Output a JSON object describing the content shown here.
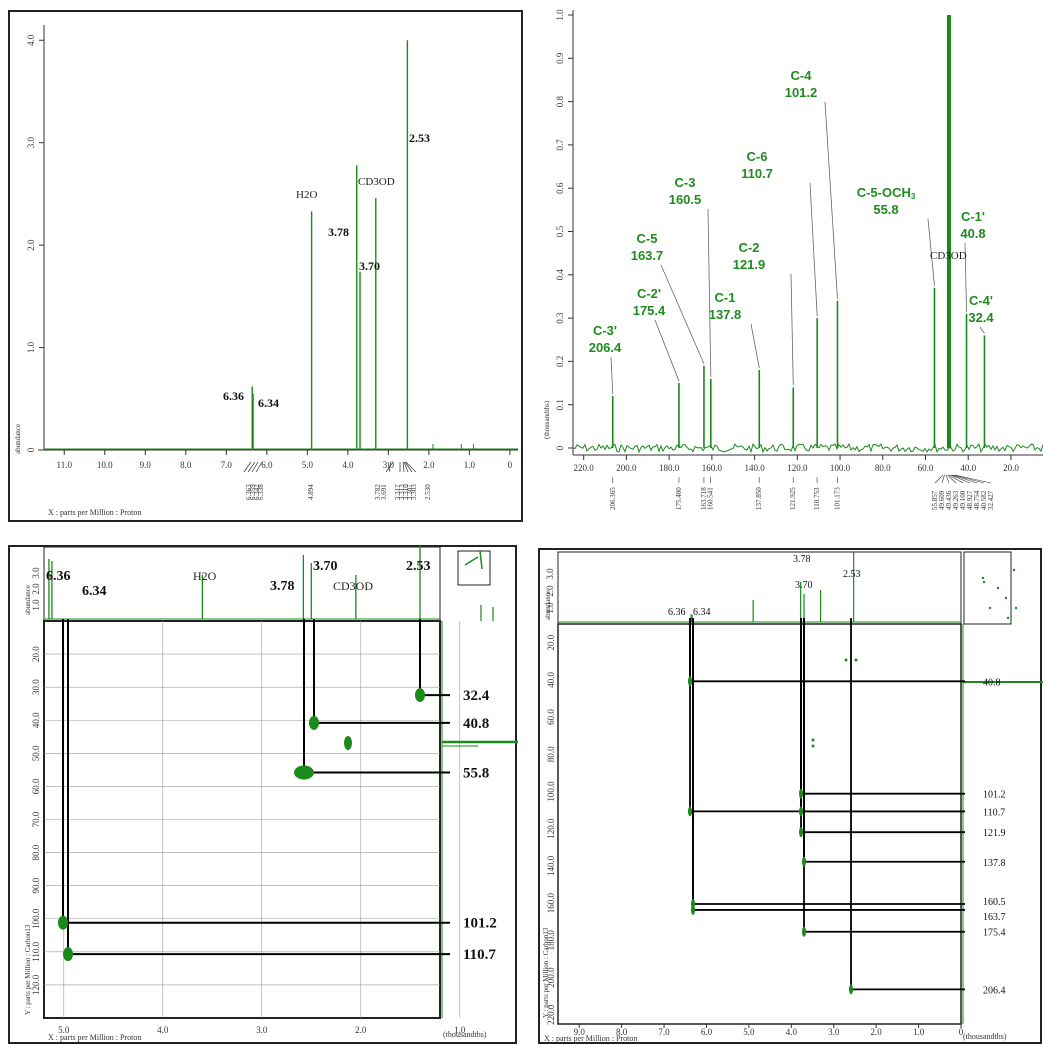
{
  "colors": {
    "spectrum": "#1a8a1a",
    "frame": "#222222",
    "grid": "#999999",
    "crossline": "#000000",
    "label_green": "#1e8c1e"
  },
  "proton_1d": {
    "x_axis_label": "X : parts per Million : Proton",
    "y_axis_label": "abundance",
    "x_ticks": [
      "11.0",
      "10.0",
      "9.0",
      "8.0",
      "7.0",
      "6.0",
      "5.0",
      "4.0",
      "3.0",
      "2.0",
      "1.0",
      "0"
    ],
    "y_ticks": [
      "0",
      "1.0",
      "2.0",
      "3.0",
      "4.0"
    ],
    "peak_readout": [
      "6.363",
      "6.359",
      "6.342",
      "6.338",
      "4.894",
      "3.782",
      "3.691",
      "3.317",
      "3.313",
      "3.310",
      "3.307",
      "3.303",
      "2.530"
    ],
    "labels": {
      "h2o": "H2O",
      "cd3od": "CD3OD",
      "p378": "3.78",
      "p370": "3.70",
      "p253": "2.53",
      "p636": "6.36",
      "p634": "6.34"
    }
  },
  "chart_data": [
    {
      "type": "line",
      "title": "",
      "xlabel": "X : parts per Million : Proton",
      "ylabel": "abundance",
      "xlim": [
        11.5,
        -0.2
      ],
      "ylim": [
        0,
        4.1
      ],
      "peaks": [
        {
          "x": 6.36,
          "y": 0.62
        },
        {
          "x": 6.34,
          "y": 0.55
        },
        {
          "x": 4.894,
          "y": 2.33
        },
        {
          "x": 3.78,
          "y": 2.78
        },
        {
          "x": 3.7,
          "y": 1.74
        },
        {
          "x": 3.31,
          "y": 2.46
        },
        {
          "x": 2.53,
          "y": 4.0
        }
      ]
    },
    {
      "type": "line",
      "title": "",
      "ylabel": "(thousandths)",
      "xlim": [
        225,
        5
      ],
      "ylim": [
        0,
        1.0
      ],
      "peaks": [
        {
          "x": 206.4,
          "y": 0.12
        },
        {
          "x": 175.4,
          "y": 0.15
        },
        {
          "x": 163.7,
          "y": 0.19
        },
        {
          "x": 160.5,
          "y": 0.16
        },
        {
          "x": 137.8,
          "y": 0.18
        },
        {
          "x": 121.9,
          "y": 0.14
        },
        {
          "x": 110.7,
          "y": 0.3
        },
        {
          "x": 101.2,
          "y": 0.34
        },
        {
          "x": 55.8,
          "y": 0.37
        },
        {
          "x": 49.0,
          "y": 1.0
        },
        {
          "x": 40.8,
          "y": 0.31
        },
        {
          "x": 32.4,
          "y": 0.26
        }
      ]
    },
    {
      "type": "scatter",
      "title": "",
      "xlabel": "X : parts per Million : Proton",
      "ylabel": "Y : parts per Million : Carbon13",
      "xlim": [
        5.2,
        1.2
      ],
      "ylim": [
        130,
        10
      ],
      "correlations": [
        {
          "x": 6.36,
          "y": 101.2
        },
        {
          "x": 6.34,
          "y": 110.7
        },
        {
          "x": 3.78,
          "y": 55.8
        },
        {
          "x": 3.7,
          "y": 40.8
        },
        {
          "x": 2.53,
          "y": 32.4
        }
      ]
    },
    {
      "type": "scatter",
      "title": "",
      "xlabel": "X : parts per Million : Proton",
      "ylabel": "Y : parts per Million : Carbon13",
      "xlim": [
        9.5,
        0
      ],
      "ylim": [
        225,
        10
      ],
      "correlations": [
        {
          "x": 6.36,
          "y": 40.8
        },
        {
          "x": 6.36,
          "y": 110.7
        },
        {
          "x": 6.34,
          "y": 160.5
        },
        {
          "x": 6.34,
          "y": 163.7
        },
        {
          "x": 3.78,
          "y": 101.2
        },
        {
          "x": 3.78,
          "y": 110.7
        },
        {
          "x": 3.78,
          "y": 121.9
        },
        {
          "x": 3.7,
          "y": 137.8
        },
        {
          "x": 3.7,
          "y": 175.4
        },
        {
          "x": 2.53,
          "y": 206.4
        }
      ]
    }
  ],
  "carbon_1d": {
    "y_axis_label": "(thousandths)",
    "x_ticks": [
      "220.0",
      "200.0",
      "180.0",
      "160.0",
      "140.0",
      "120.0",
      "100.0",
      "80.0",
      "60.0",
      "40.0",
      "20.0"
    ],
    "y_ticks": [
      "0",
      "0.1",
      "0.2",
      "0.3",
      "0.4",
      "0.5",
      "0.6",
      "0.7",
      "0.8",
      "0.9",
      "1.0"
    ],
    "peak_readout_left": [
      "206.365",
      "175.400",
      "163.718",
      "160.541",
      "137.850",
      "121.925",
      "110.753",
      "101.173"
    ],
    "peak_readout_right": [
      "55.857",
      "49.609",
      "49.436",
      "49.263",
      "49.100",
      "48.927",
      "48.754",
      "40.582",
      "32.427"
    ],
    "assignments": [
      {
        "name": "C-3'",
        "shift": "206.4"
      },
      {
        "name": "C-2'",
        "shift": "175.4"
      },
      {
        "name": "C-5",
        "shift": "163.7"
      },
      {
        "name": "C-3",
        "shift": "160.5"
      },
      {
        "name": "C-1",
        "shift": "137.8"
      },
      {
        "name": "C-2",
        "shift": "121.9"
      },
      {
        "name": "C-6",
        "shift": "110.7"
      },
      {
        "name": "C-4",
        "shift": "101.2"
      },
      {
        "name": "C-5-OCH",
        "sub": "3",
        "shift": "55.8"
      },
      {
        "name": "C-1'",
        "shift": "40.8"
      },
      {
        "name": "C-4'",
        "shift": "32.4"
      }
    ],
    "solvent": "CD3OD"
  },
  "hsqc": {
    "x_axis_label": "X : parts per Million : Proton",
    "y_axis_label": "Y : parts per Million : Carbon13",
    "corner_label": "(thousandths)",
    "top_axis_label": "abundance",
    "top_ticks": [
      "1.0",
      "2.0",
      "3.0"
    ],
    "x_ticks": [
      "5.0",
      "4.0",
      "3.0",
      "2.0",
      "1.0"
    ],
    "y_ticks": [
      "20.0",
      "30.0",
      "40.0",
      "50.0",
      "60.0",
      "70.0",
      "80.0",
      "90.0",
      "100.0",
      "110.0",
      "120.0"
    ],
    "top_labels": {
      "p636": "6.36",
      "p634": "6.34",
      "h2o": "H2O",
      "p378": "3.78",
      "p370": "3.70",
      "cd3od": "CD3OD",
      "p253": "2.53"
    },
    "right_labels": [
      "32.4",
      "40.8",
      "55.8",
      "101.2",
      "110.7"
    ]
  },
  "hmbc": {
    "x_axis_label": "X : parts per Million : Proton",
    "y_axis_label": "Y : parts per Million : Carbon13",
    "corner_label": "(thousandths)",
    "top_axis_label": "abundance",
    "top_ticks": [
      "1.0",
      "2.0",
      "3.0"
    ],
    "x_ticks": [
      "9.0",
      "8.0",
      "7.0",
      "6.0",
      "5.0",
      "4.0",
      "3.0",
      "2.0",
      "1.0",
      "0"
    ],
    "y_ticks": [
      "20.0",
      "40.0",
      "60.0",
      "80.0",
      "100.0",
      "120.0",
      "140.0",
      "160.0",
      "180.0",
      "200.0",
      "220.0"
    ],
    "top_labels": {
      "p636": "6.36",
      "p634": "6.34",
      "p378": "3.78",
      "p370": "3.70",
      "p253": "2.53"
    },
    "right_labels": [
      "40.8",
      "101.2",
      "110.7",
      "121.9",
      "137.8",
      "160.5",
      "163.7",
      "175.4",
      "206.4"
    ]
  }
}
